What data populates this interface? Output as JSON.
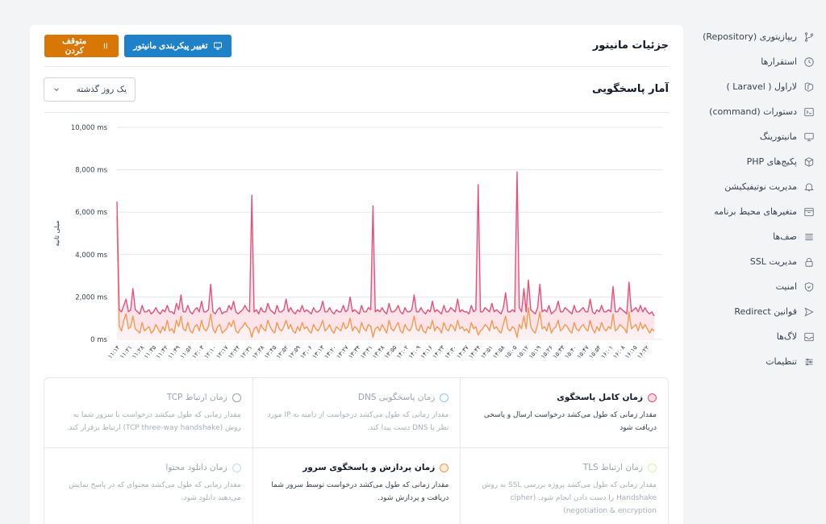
{
  "sidebar": {
    "items": [
      {
        "label": "ریپازیتوری (Repository)",
        "icon": "git-branch-icon"
      },
      {
        "label": "استقرارها",
        "icon": "clock-icon"
      },
      {
        "label": "لاراول ( Laravel )",
        "icon": "laravel-icon"
      },
      {
        "label": "دستورات (command)",
        "icon": "terminal-icon"
      },
      {
        "label": "مانیتورینگ",
        "icon": "monitor-icon"
      },
      {
        "label": "پکیج‌های PHP",
        "icon": "package-icon"
      },
      {
        "label": "مدیریت نوتیفیکیشن",
        "icon": "bell-icon"
      },
      {
        "label": "متغیرهای محیط برنامه",
        "icon": "env-icon"
      },
      {
        "label": "صف‌ها",
        "icon": "queue-icon"
      },
      {
        "label": "مدیریت SSL",
        "icon": "lock-icon"
      },
      {
        "label": "امنیت",
        "icon": "shield-icon"
      },
      {
        "label": "قوانین Redirect",
        "icon": "send-icon"
      },
      {
        "label": "لاگ‌ها",
        "icon": "inbox-icon"
      },
      {
        "label": "تنظیمات",
        "icon": "sliders-icon"
      }
    ]
  },
  "header": {
    "title": "جزئیات مانیتور",
    "change_plan_label": "تغییر پیکربندی مانیتور",
    "pause_label": "متوقف کردن"
  },
  "stats": {
    "title": "آمار پاسخگویی",
    "range_selected": "یک روز گذشته"
  },
  "colors": {
    "total": "#e8507a",
    "server": "#f59a4f",
    "fill": "#fde4ea",
    "primary_button": "#1f82c9",
    "warning_button": "#d97706"
  },
  "chart_data": {
    "type": "line",
    "ylabel": "میلی ثانیه",
    "ylim": [
      0,
      10000
    ],
    "y_ticks": [
      "10,000 ms",
      "8,000 ms",
      "6,000 ms",
      "4,000 ms",
      "2,000 ms",
      "0 ms"
    ],
    "y_tick_values": [
      10000,
      8000,
      6000,
      4000,
      2000,
      0
    ],
    "x_tick_labels": [
      "۱۱:۱۴",
      "۱۱:۲۱",
      "۱۱:۲۸",
      "۱۱:۳۵",
      "۱۱:۴۲",
      "۱۱:۴۹",
      "۱۱:۵۶",
      "۱۲:۰۳",
      "۱۲:۱۰",
      "۱۲:۱۷",
      "۱۲:۲۴",
      "۱۲:۳۱",
      "۱۲:۳۸",
      "۱۲:۴۵",
      "۱۲:۵۲",
      "۱۲:۵۹",
      "۱۳:۰۶",
      "۱۳:۱۳",
      "۱۳:۲۰",
      "۱۳:۲۷",
      "۱۳:۳۴",
      "۱۳:۴۱",
      "۱۳:۴۸",
      "۱۳:۵۵",
      "۱۴:۰۲",
      "۱۴:۰۹",
      "۱۴:۱۶",
      "۱۴:۲۳",
      "۱۴:۳۰",
      "۱۴:۳۷",
      "۱۴:۴۴",
      "۱۴:۵۱",
      "۱۴:۵۸",
      "۱۵:۰۵",
      "۱۵:۱۲",
      "۱۵:۱۹",
      "۱۵:۲۶",
      "۱۵:۳۳",
      "۱۵:۴۰",
      "۱۵:۴۷",
      "۱۵:۵۴",
      "۱۶:۰۱",
      "۱۶:۰۸",
      "۱۶:۱۵",
      "۱۶:۲۲"
    ],
    "series": [
      {
        "key": "total",
        "values": [
          6500,
          1400,
          1300,
          1600,
          1900,
          1300,
          1400,
          2400,
          1400,
          1300,
          1200,
          1600,
          1300,
          1300,
          1400,
          1200,
          1300,
          1500,
          1300,
          1200,
          1400,
          1300,
          1600,
          1300,
          1300,
          1200,
          1700,
          1400,
          2100,
          1300,
          1300,
          1600,
          1300,
          1200,
          1400,
          1500,
          1300,
          1800,
          1300,
          1300,
          1400,
          2600,
          1300,
          1200,
          1400,
          1500,
          1200,
          1300,
          1300,
          1600,
          1400,
          1800,
          1300,
          1200,
          1300,
          1400,
          1600,
          1400,
          1300,
          6800,
          1300,
          1400,
          1200,
          1500,
          1300,
          1300,
          1700,
          1400,
          1300,
          1200,
          1600,
          1300,
          1300,
          1400,
          1900,
          1300,
          1500,
          1300,
          1200,
          1400,
          1300,
          1600,
          1300,
          1400,
          1300,
          1200,
          1500,
          1300,
          1300,
          1400,
          1800,
          1300,
          1300,
          1500,
          1300,
          1200,
          1400,
          1300,
          1300,
          1600,
          1300,
          1400,
          2000,
          1300,
          1400,
          1300,
          1200,
          1600,
          1300,
          1300,
          1500,
          1400,
          6300,
          1300,
          1400,
          1300,
          1500,
          1300,
          1200,
          1700,
          1300,
          1300,
          1400,
          1600,
          1300,
          1200,
          1500,
          1300,
          1300,
          1400,
          2100,
          1300,
          1300,
          1500,
          1300,
          1200,
          1400,
          1300,
          1800,
          1300,
          1400,
          1300,
          1200,
          1600,
          1300,
          1300,
          1500,
          1400,
          1300,
          1900,
          1300,
          1400,
          1300,
          1300,
          1200,
          1600,
          1300,
          1400,
          7300,
          1300,
          1300,
          1500,
          1400,
          1300,
          1700,
          1300,
          1400,
          1300,
          1200,
          1500,
          2200,
          1300,
          1300,
          1400,
          1300,
          7900,
          1500,
          1300,
          2400,
          1300,
          2800,
          1400,
          1300,
          1200,
          1500,
          2600,
          1300,
          1400,
          1300,
          1600,
          1200,
          1300,
          1400,
          1800,
          1300,
          1300,
          1500,
          1400,
          1300,
          1200,
          1600,
          1300,
          1300,
          1400,
          1500,
          1300,
          1300,
          1900,
          1300,
          1200,
          1400,
          1300,
          1600,
          1300,
          1300,
          1400,
          1300,
          2500,
          1300,
          1300,
          1500,
          1400,
          1300,
          1200,
          2700,
          1300,
          1400,
          1500,
          1300,
          1600,
          1300,
          1500,
          1300,
          1200,
          1300,
          1100
        ]
      },
      {
        "key": "server",
        "values": [
          5800,
          600,
          400,
          900,
          1200,
          500,
          600,
          1100,
          500,
          400,
          300,
          800,
          400,
          500,
          600,
          300,
          400,
          700,
          500,
          300,
          600,
          400,
          900,
          400,
          500,
          300,
          900,
          600,
          1100,
          500,
          400,
          800,
          400,
          300,
          600,
          700,
          400,
          900,
          500,
          400,
          600,
          1200,
          500,
          300,
          600,
          700,
          300,
          400,
          500,
          800,
          600,
          900,
          400,
          300,
          500,
          600,
          800,
          600,
          500,
          100,
          500,
          600,
          300,
          700,
          500,
          400,
          900,
          600,
          400,
          300,
          800,
          500,
          400,
          600,
          900,
          500,
          700,
          400,
          300,
          600,
          400,
          800,
          500,
          600,
          400,
          300,
          700,
          500,
          400,
          600,
          900,
          400,
          500,
          700,
          400,
          300,
          600,
          500,
          400,
          800,
          500,
          600,
          1000,
          400,
          600,
          500,
          300,
          800,
          500,
          400,
          700,
          600,
          100,
          500,
          600,
          400,
          700,
          500,
          300,
          900,
          500,
          400,
          600,
          800,
          400,
          300,
          700,
          500,
          400,
          600,
          1100,
          500,
          400,
          700,
          400,
          300,
          600,
          500,
          900,
          400,
          600,
          500,
          300,
          800,
          500,
          400,
          700,
          600,
          400,
          900,
          500,
          600,
          400,
          500,
          300,
          800,
          500,
          600,
          200,
          400,
          500,
          700,
          600,
          400,
          900,
          500,
          600,
          400,
          300,
          700,
          1100,
          500,
          400,
          600,
          500,
          100,
          700,
          500,
          1100,
          500,
          1500,
          600,
          400,
          300,
          700,
          1300,
          500,
          600,
          400,
          800,
          300,
          500,
          600,
          900,
          400,
          500,
          700,
          600,
          400,
          300,
          800,
          500,
          400,
          600,
          700,
          500,
          400,
          900,
          500,
          300,
          600,
          400,
          800,
          500,
          400,
          600,
          500,
          1200,
          400,
          500,
          700,
          600,
          500,
          300,
          1300,
          500,
          600,
          700,
          400,
          800,
          500,
          700,
          500,
          300,
          500,
          400
        ]
      }
    ]
  },
  "metrics": [
    {
      "title": "زمان کامل پاسخگوی",
      "desc": "مقدار زمانی که طول می‌کشد درخواست ارسال و پاسخی دریافت شود",
      "dot": "#e8507a",
      "dim": false
    },
    {
      "title": "زمان پاسخگویی DNS",
      "desc": "مقدار زمانی که طول می‌کشد درخواست از دامنه به IP مورد نظر با DNS دست پیدا کند.",
      "dot": "#93c5fd",
      "dim": true
    },
    {
      "title": "زمان ارتباط TCP",
      "desc": "مقدار زمانی که طول میکشد درخواست با سرور شما به روش (TCP three-way handshake) ارتباط برقرار کند.",
      "dot": "#9ca3af",
      "dim": true
    },
    {
      "title": "زمان ارتباط TLS",
      "desc": "مقدار زمانی که طول می‌کشد پروژه بررسی SSL به روش Handshake را دست دادن انجام شود. (cipher negotiation & encryption)",
      "dot": "#d9f99d",
      "dim": true
    },
    {
      "title": "زمان پردازش و پاسخگوی سرور",
      "desc": "مقدار زمانی که طول می‌کشد درخواست توسط سرور شما دریافت و پردازش شود.",
      "dot": "#f59a4f",
      "dim": false
    },
    {
      "title": "زمان دانلود محتوا",
      "desc": "مقدار زمانی که طول می‌کشد محتوای که در پاسخ نمایش می‌دهید دانلود شود.",
      "dot": "#bfdbfe",
      "dim": true
    }
  ]
}
